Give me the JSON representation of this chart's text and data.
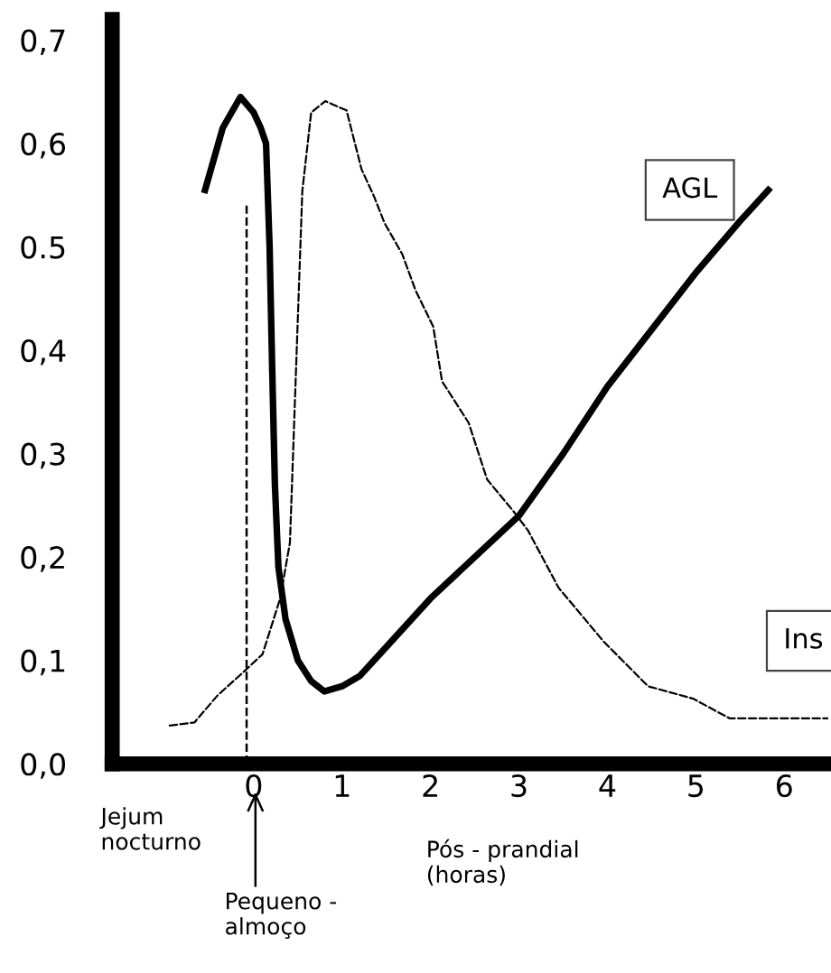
{
  "chart_data": {
    "type": "line",
    "xlim": [
      -1.6,
      6.5
    ],
    "ylim": [
      0,
      0.72
    ],
    "xticks": [
      0,
      1,
      2,
      3,
      4,
      5,
      6
    ],
    "yticks": [
      {
        "value": 0,
        "label": "0,0"
      },
      {
        "value": 0.1,
        "label": "0,1"
      },
      {
        "value": 0.2,
        "label": "0,2"
      },
      {
        "value": 0.3,
        "label": "0,3"
      },
      {
        "value": 0.4,
        "label": "0,4"
      },
      {
        "value": 0.5,
        "label": "0.5"
      },
      {
        "value": 0.6,
        "label": "0,6"
      },
      {
        "value": 0.7,
        "label": "0,7"
      }
    ],
    "series": [
      {
        "name": "AGL",
        "color": "#000000",
        "line_style": "solid",
        "x": [
          -0.55,
          -0.35,
          -0.15,
          0.0,
          0.08,
          0.14,
          0.18,
          0.21,
          0.24,
          0.28,
          0.36,
          0.5,
          0.65,
          0.8,
          1.0,
          1.2,
          1.5,
          2.0,
          2.5,
          3.0,
          3.5,
          4.0,
          4.5,
          5.0,
          5.5,
          5.82
        ],
        "values": [
          0.555,
          0.615,
          0.645,
          0.63,
          0.615,
          0.6,
          0.5,
          0.38,
          0.27,
          0.19,
          0.14,
          0.1,
          0.08,
          0.07,
          0.075,
          0.085,
          0.113,
          0.16,
          0.2,
          0.24,
          0.3,
          0.365,
          0.42,
          0.475,
          0.525,
          0.555
        ]
      },
      {
        "name": "Ins",
        "color": "#000000",
        "line_style": "dashed",
        "x": [
          -0.95,
          -0.67,
          -0.41,
          -0.1,
          0.1,
          0.3,
          0.41,
          0.55,
          0.65,
          0.81,
          1.05,
          1.22,
          1.36,
          1.48,
          1.68,
          1.83,
          2.03,
          2.13,
          2.43,
          2.64,
          2.94,
          3.1,
          3.45,
          3.96,
          4.46,
          4.97,
          5.38,
          6.49
        ],
        "values": [
          0.037,
          0.04,
          0.066,
          0.09,
          0.106,
          0.16,
          0.214,
          0.554,
          0.63,
          0.641,
          0.632,
          0.575,
          0.549,
          0.523,
          0.493,
          0.458,
          0.423,
          0.37,
          0.33,
          0.275,
          0.244,
          0.226,
          0.17,
          0.118,
          0.075,
          0.063,
          0.044,
          0.044
        ]
      }
    ],
    "ref_lines": [
      {
        "axis": "x",
        "value": -0.08,
        "line_style": "dashed",
        "color": "#000000"
      }
    ],
    "annotations": [
      "Jejum\nnocturno",
      "Pequeno -\nalmoço",
      "Pós - prandial\n(horas)"
    ],
    "legend": false,
    "grid": false,
    "marker": "none"
  }
}
